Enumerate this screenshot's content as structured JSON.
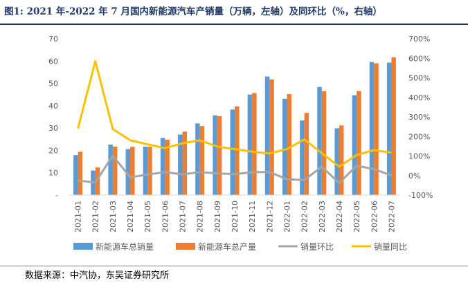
{
  "figure": {
    "title": "图1:  2021 年-2022 年 7 月国内新能源汽车产销量（万辆，左轴）及同环比（%，右轴）",
    "source": "数据来源：中汽协，东吴证券研究所"
  },
  "chart_data": {
    "type": "bar",
    "categories": [
      "2021-01",
      "2021-02",
      "2021-03",
      "2021-04",
      "2021-05",
      "2021-06",
      "2021-07",
      "2021-08",
      "2021-09",
      "2021-10",
      "2021-11",
      "2021-12",
      "2022-01",
      "2022-02",
      "2022-03",
      "2022-04",
      "2022-05",
      "2022-06",
      "2022-07"
    ],
    "series": [
      {
        "name": "新能源车总销量",
        "type": "bar",
        "axis": "left",
        "color": "#5b9bd5",
        "values": [
          17.9,
          11.0,
          22.6,
          20.6,
          21.7,
          25.6,
          27.1,
          32.1,
          35.7,
          38.3,
          45.0,
          53.1,
          43.1,
          33.4,
          48.4,
          29.9,
          44.7,
          59.6,
          59.3
        ]
      },
      {
        "name": "新能源车总产量",
        "type": "bar",
        "axis": "left",
        "color": "#ed7d31",
        "values": [
          19.4,
          12.4,
          21.7,
          21.6,
          21.6,
          24.8,
          28.4,
          30.9,
          35.3,
          39.7,
          45.7,
          51.8,
          45.2,
          36.8,
          46.5,
          31.2,
          46.6,
          59.0,
          61.7
        ]
      },
      {
        "name": "销量环比",
        "type": "line",
        "axis": "right",
        "color": "#a5a5a5",
        "values": [
          -25,
          -36,
          102,
          -9,
          5,
          18,
          6,
          18,
          11,
          7,
          17,
          18,
          -19,
          -23,
          45,
          -38,
          50,
          33,
          0
        ]
      },
      {
        "name": "销量同比",
        "type": "line",
        "axis": "right",
        "color": "#ffc000",
        "values": [
          240,
          585,
          238,
          180,
          160,
          140,
          165,
          180,
          148,
          135,
          122,
          113,
          135,
          185,
          115,
          45,
          105,
          130,
          117
        ]
      }
    ],
    "left_axis": {
      "min": 0,
      "max": 70,
      "step": 10,
      "tick_labels": [
        "-",
        "10",
        "20",
        "30",
        "40",
        "50",
        "60",
        "70"
      ]
    },
    "right_axis": {
      "min": -100,
      "max": 700,
      "step": 100,
      "tick_labels": [
        "-100%",
        "0%",
        "100%",
        "200%",
        "300%",
        "400%",
        "500%",
        "600%",
        "700%"
      ]
    },
    "grid": false,
    "legend_position": "bottom"
  }
}
